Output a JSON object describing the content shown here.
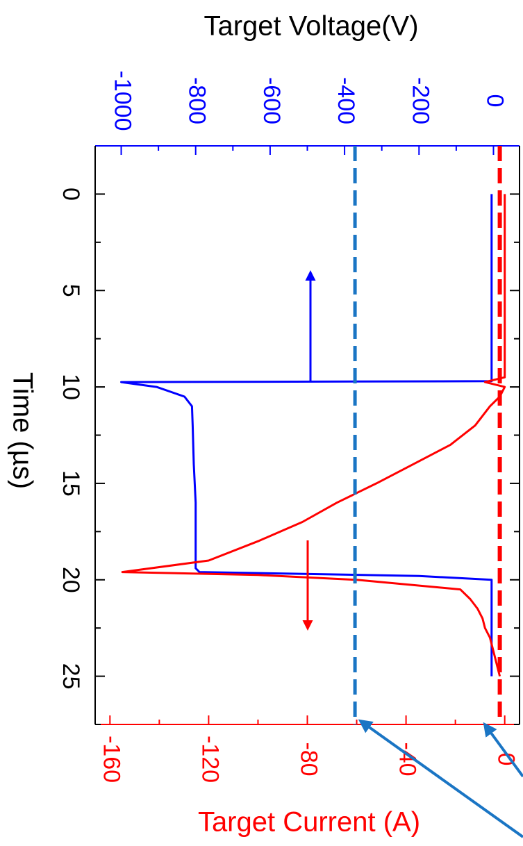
{
  "chart_data": {
    "type": "line",
    "orientation": "rotated 90 degrees clockwise",
    "x_axis": {
      "label": "Time (µs)",
      "ticks": [
        0,
        5,
        10,
        15,
        20,
        25
      ],
      "range": [
        -2.5,
        27.5
      ]
    },
    "y_axes": [
      {
        "label": "Target Voltage(V)",
        "color": "#0000ff",
        "ticks": [
          -1000,
          -800,
          -600,
          -400,
          -200,
          0
        ],
        "range": [
          -1070,
          70
        ]
      },
      {
        "label": "Target Current (A)",
        "color": "#ff0000",
        "ticks": [
          -160,
          -120,
          -80,
          -40,
          0
        ],
        "range": [
          -166,
          6
        ]
      }
    ],
    "series": [
      {
        "axis": "voltage",
        "color": "#0000ff",
        "x": [
          0,
          9.7,
          9.75,
          10.0,
          10.5,
          11,
          12,
          14,
          16,
          19.4,
          19.6,
          19.8,
          20.0,
          21,
          25
        ],
        "y": [
          -5,
          -5,
          -1000,
          -905,
          -830,
          -810,
          -808,
          -805,
          -800,
          -800,
          -790,
          -200,
          -5,
          -5,
          -5
        ]
      },
      {
        "axis": "current",
        "color": "#ff0000",
        "x": [
          0,
          9.5,
          9.75,
          10,
          10.5,
          11,
          12,
          13,
          14,
          15,
          16,
          17,
          18,
          19,
          19.6,
          19.75,
          20,
          20.5,
          21,
          21.5,
          22,
          22.5,
          23,
          24,
          25
        ],
        "y": [
          0,
          0,
          -8,
          0,
          -2,
          -6,
          -12,
          -22,
          -37,
          -52,
          -68,
          -82,
          -100,
          -120,
          -155,
          -100,
          -60,
          -18,
          -14,
          -11,
          -9,
          -8,
          -6,
          -4,
          -2
        ]
      }
    ],
    "reference_lines": [
      {
        "axis": "current",
        "value": -2,
        "color": "#ff0000",
        "style": "dashed"
      },
      {
        "axis": "voltage",
        "value": -372,
        "color": "#1a75c4",
        "style": "dashed"
      }
    ],
    "annotations": [
      {
        "type": "arrow",
        "color": "#0000ff",
        "meaning": "voltage curve refers to top (Target Voltage) axis"
      },
      {
        "type": "arrow",
        "color": "#ff0000",
        "meaning": "current curve refers to bottom (Target Current) axis"
      },
      {
        "type": "arrow",
        "color": "#1a75c4",
        "meaning": "pointers to the two dashed reference lines"
      }
    ]
  }
}
